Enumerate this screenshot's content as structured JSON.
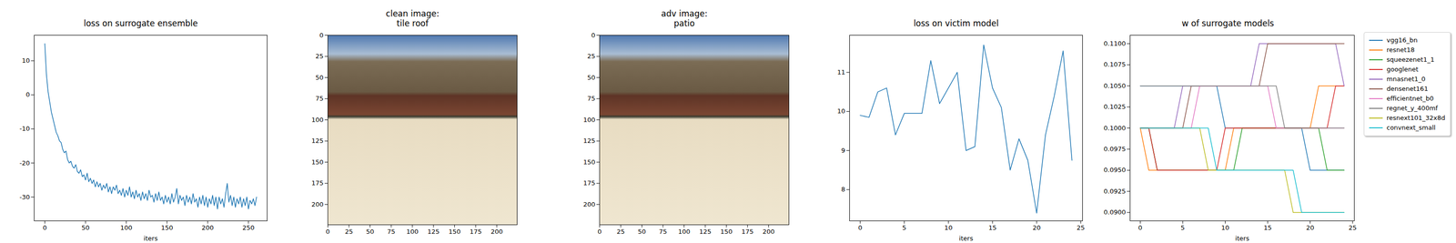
{
  "chart_data": [
    {
      "type": "line",
      "title": "loss on surrogate ensemble",
      "xlabel": "iters",
      "color": "#1f77b4",
      "x": [
        0,
        2,
        4,
        6,
        8,
        10,
        12,
        14,
        16,
        18,
        20,
        22,
        24,
        26,
        28,
        30,
        32,
        34,
        36,
        38,
        40,
        42,
        44,
        46,
        48,
        50,
        52,
        54,
        56,
        58,
        60,
        62,
        64,
        66,
        68,
        70,
        72,
        74,
        76,
        78,
        80,
        82,
        84,
        86,
        88,
        90,
        92,
        94,
        96,
        98,
        100,
        102,
        104,
        106,
        108,
        110,
        112,
        114,
        116,
        118,
        120,
        122,
        124,
        126,
        128,
        130,
        132,
        134,
        136,
        138,
        140,
        142,
        144,
        146,
        148,
        150,
        152,
        154,
        156,
        158,
        160,
        162,
        164,
        166,
        168,
        170,
        172,
        174,
        176,
        178,
        180,
        182,
        184,
        186,
        188,
        190,
        192,
        194,
        196,
        198,
        200,
        202,
        204,
        206,
        208,
        210,
        212,
        214,
        216,
        218,
        220,
        222,
        224,
        226,
        228,
        230,
        232,
        234,
        236,
        238,
        240,
        242,
        244,
        246,
        248,
        250,
        252,
        254,
        256,
        258,
        260
      ],
      "values": [
        15,
        6,
        1,
        -2,
        -5,
        -7,
        -9,
        -11,
        -12,
        -13.5,
        -14,
        -16,
        -17,
        -16.5,
        -19,
        -20,
        -19.5,
        -21,
        -21.5,
        -20.5,
        -22.5,
        -23,
        -22,
        -24,
        -23.5,
        -25,
        -23,
        -25.5,
        -24.5,
        -26,
        -25,
        -27,
        -25.5,
        -27,
        -26,
        -28,
        -26.5,
        -27.5,
        -26,
        -28.5,
        -27,
        -29,
        -27,
        -28,
        -26.5,
        -29,
        -28,
        -29.5,
        -27.5,
        -30,
        -28,
        -29.5,
        -27,
        -30,
        -28.5,
        -30.5,
        -28,
        -30,
        -29,
        -31,
        -28.5,
        -30.5,
        -29,
        -31,
        -28,
        -30,
        -29.5,
        -31.5,
        -29,
        -31,
        -28.5,
        -31,
        -30,
        -32,
        -29.5,
        -31.5,
        -30,
        -32,
        -29,
        -31.5,
        -30,
        -27.5,
        -32,
        -29.5,
        -31,
        -30,
        -32.5,
        -29.5,
        -31.5,
        -30,
        -32,
        -29,
        -31.5,
        -30.5,
        -33,
        -30,
        -32,
        -29.5,
        -32.5,
        -30,
        -33,
        -30.5,
        -32,
        -29.5,
        -32.5,
        -30,
        -33.5,
        -30,
        -32,
        -30.5,
        -33,
        -29,
        -26,
        -31.5,
        -29.5,
        -32.5,
        -30,
        -33,
        -30.5,
        -32,
        -30,
        -33,
        -30.5,
        -32.5,
        -30,
        -33.5,
        -31,
        -32,
        -30.5,
        -32.5,
        -30
      ],
      "xlim": [
        -13,
        273
      ],
      "xticks": [
        0,
        50,
        100,
        150,
        200,
        250
      ],
      "ylim": [
        -37,
        17.5
      ],
      "yticks": [
        -30,
        -20,
        -10,
        0,
        10
      ]
    },
    {
      "type": "image",
      "title": "clean image:\ntile roof",
      "xlim": [
        0,
        224
      ],
      "ylim": [
        224,
        0
      ],
      "xticks": [
        0,
        25,
        50,
        75,
        100,
        125,
        150,
        175,
        200
      ],
      "yticks": [
        0,
        25,
        50,
        75,
        100,
        125,
        150,
        175,
        200
      ]
    },
    {
      "type": "image",
      "title": "adv image:\npatio",
      "xlim": [
        0,
        224
      ],
      "ylim": [
        224,
        0
      ],
      "xticks": [
        0,
        25,
        50,
        75,
        100,
        125,
        150,
        175,
        200
      ],
      "yticks": [
        0,
        25,
        50,
        75,
        100,
        125,
        150,
        175,
        200
      ]
    },
    {
      "type": "line",
      "title": "loss on victim model",
      "xlabel": "iters",
      "color": "#1f77b4",
      "x": [
        0,
        1,
        2,
        3,
        4,
        5,
        6,
        7,
        8,
        9,
        10,
        11,
        12,
        13,
        14,
        15,
        16,
        17,
        18,
        19,
        20,
        21,
        22,
        23,
        24
      ],
      "values": [
        9.9,
        9.85,
        10.5,
        10.6,
        9.4,
        9.95,
        9.95,
        9.95,
        11.3,
        10.2,
        10.6,
        11.0,
        9.0,
        9.1,
        11.7,
        10.6,
        10.1,
        8.5,
        9.3,
        8.75,
        7.4,
        9.4,
        10.4,
        11.55,
        8.75
      ],
      "xlim": [
        -1.2,
        25.2
      ],
      "xticks": [
        0,
        5,
        10,
        15,
        20,
        25
      ],
      "ylim": [
        7.2,
        11.95
      ],
      "yticks": [
        8,
        9,
        10,
        11
      ]
    },
    {
      "type": "line",
      "title": "w of surrogate models",
      "xlabel": "iters",
      "legend": "outside right",
      "x": [
        0,
        1,
        2,
        3,
        4,
        5,
        6,
        7,
        8,
        9,
        10,
        11,
        12,
        13,
        14,
        15,
        16,
        17,
        18,
        19,
        20,
        21,
        22,
        23,
        24
      ],
      "xlim": [
        -1.2,
        25.2
      ],
      "xticks": [
        0,
        5,
        10,
        15,
        20,
        25
      ],
      "ylim": [
        0.089,
        0.111
      ],
      "yticks": [
        {
          "value": 0.09,
          "label": "0.0900"
        },
        {
          "value": 0.0925,
          "label": "0.0925"
        },
        {
          "value": 0.095,
          "label": "0.0950"
        },
        {
          "value": 0.0975,
          "label": "0.0975"
        },
        {
          "value": 0.1,
          "label": "0.1000"
        },
        {
          "value": 0.1025,
          "label": "0.1025"
        },
        {
          "value": 0.105,
          "label": "0.1050"
        },
        {
          "value": 0.1075,
          "label": "0.1075"
        },
        {
          "value": 0.11,
          "label": "0.1100"
        }
      ],
      "series": [
        {
          "name": "vgg16_bn",
          "color": "#1f77b4",
          "values": [
            0.105,
            0.105,
            0.105,
            0.105,
            0.105,
            0.105,
            0.105,
            0.105,
            0.105,
            0.105,
            0.1,
            0.1,
            0.1,
            0.1,
            0.1,
            0.1,
            0.1,
            0.1,
            0.1,
            0.1,
            0.095,
            0.095,
            0.095,
            0.095,
            0.095
          ]
        },
        {
          "name": "resnet18",
          "color": "#ff7f0e",
          "values": [
            0.1,
            0.095,
            0.095,
            0.095,
            0.095,
            0.095,
            0.095,
            0.095,
            0.095,
            0.095,
            0.095,
            0.1,
            0.1,
            0.1,
            0.1,
            0.1,
            0.1,
            0.1,
            0.1,
            0.1,
            0.1,
            0.105,
            0.105,
            0.105,
            0.105
          ]
        },
        {
          "name": "squeezenet1_1",
          "color": "#2ca02c",
          "values": [
            0.1,
            0.1,
            0.095,
            0.095,
            0.095,
            0.095,
            0.095,
            0.095,
            0.095,
            0.095,
            0.095,
            0.095,
            0.1,
            0.1,
            0.1,
            0.1,
            0.1,
            0.1,
            0.1,
            0.1,
            0.1,
            0.1,
            0.095,
            0.095,
            0.095
          ]
        },
        {
          "name": "googlenet",
          "color": "#d62728",
          "values": [
            0.1,
            0.1,
            0.095,
            0.095,
            0.095,
            0.095,
            0.095,
            0.095,
            0.095,
            0.095,
            0.1,
            0.1,
            0.1,
            0.1,
            0.1,
            0.1,
            0.1,
            0.1,
            0.1,
            0.1,
            0.1,
            0.1,
            0.1,
            0.105,
            0.105
          ]
        },
        {
          "name": "mnasnet1_0",
          "color": "#9467bd",
          "values": [
            0.1,
            0.1,
            0.1,
            0.1,
            0.1,
            0.105,
            0.105,
            0.105,
            0.105,
            0.105,
            0.105,
            0.105,
            0.105,
            0.105,
            0.11,
            0.11,
            0.11,
            0.11,
            0.11,
            0.11,
            0.11,
            0.11,
            0.11,
            0.11,
            0.105
          ]
        },
        {
          "name": "densenet161",
          "color": "#8c564b",
          "values": [
            0.1,
            0.1,
            0.1,
            0.1,
            0.1,
            0.1,
            0.105,
            0.105,
            0.105,
            0.105,
            0.105,
            0.105,
            0.105,
            0.105,
            0.105,
            0.11,
            0.11,
            0.11,
            0.11,
            0.11,
            0.11,
            0.11,
            0.11,
            0.11,
            0.11
          ]
        },
        {
          "name": "efficientnet_b0",
          "color": "#e377c2",
          "values": [
            0.1,
            0.1,
            0.1,
            0.1,
            0.1,
            0.1,
            0.1,
            0.105,
            0.105,
            0.105,
            0.105,
            0.105,
            0.105,
            0.105,
            0.105,
            0.105,
            0.1,
            0.1,
            0.1,
            0.1,
            0.1,
            0.1,
            0.1,
            0.1,
            0.1
          ]
        },
        {
          "name": "regnet_y_400mf",
          "color": "#7f7f7f",
          "values": [
            0.105,
            0.105,
            0.105,
            0.105,
            0.105,
            0.105,
            0.105,
            0.105,
            0.105,
            0.105,
            0.105,
            0.105,
            0.105,
            0.105,
            0.105,
            0.105,
            0.105,
            0.1,
            0.1,
            0.1,
            0.1,
            0.1,
            0.1,
            0.1,
            0.1
          ]
        },
        {
          "name": "resnext101_32x8d",
          "color": "#bcbd22",
          "values": [
            0.1,
            0.1,
            0.1,
            0.1,
            0.1,
            0.1,
            0.1,
            0.1,
            0.095,
            0.095,
            0.095,
            0.095,
            0.095,
            0.095,
            0.095,
            0.095,
            0.095,
            0.095,
            0.09,
            0.09,
            0.09,
            0.09,
            0.09,
            0.09,
            0.09
          ]
        },
        {
          "name": "convnext_small",
          "color": "#17becf",
          "values": [
            0.1,
            0.1,
            0.1,
            0.1,
            0.1,
            0.1,
            0.1,
            0.1,
            0.1,
            0.095,
            0.095,
            0.095,
            0.095,
            0.095,
            0.095,
            0.095,
            0.095,
            0.095,
            0.095,
            0.09,
            0.09,
            0.09,
            0.09,
            0.09,
            0.09
          ]
        }
      ]
    }
  ]
}
